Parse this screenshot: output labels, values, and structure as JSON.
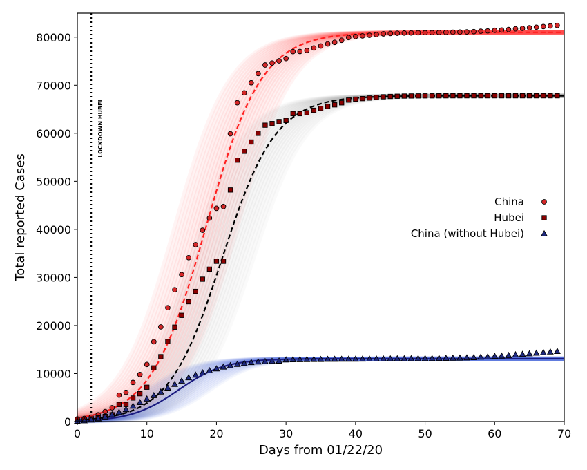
{
  "chart_data": {
    "type": "scatter",
    "xlabel": "Days from 01/22/20",
    "ylabel": "Total reported Cases",
    "xlim": [
      0,
      70
    ],
    "ylim": [
      0,
      85000
    ],
    "xticks": [
      0,
      10,
      20,
      30,
      40,
      50,
      60,
      70
    ],
    "yticks": [
      0,
      10000,
      20000,
      30000,
      40000,
      50000,
      60000,
      70000,
      80000
    ],
    "grid": false,
    "legend_position": "right",
    "annotation": {
      "text": "LOCKDOWN HUBEI",
      "x": 2
    },
    "series": [
      {
        "name": "China",
        "marker": "circle",
        "color": "#d62728",
        "band_color": "#ff2a2a",
        "fit_color": "#ff2020",
        "fit": {
          "L": 81000,
          "k": 0.25,
          "x0": 18.5
        },
        "x": [
          0,
          1,
          2,
          3,
          4,
          5,
          6,
          7,
          8,
          9,
          10,
          11,
          12,
          13,
          14,
          15,
          16,
          17,
          18,
          19,
          20,
          21,
          22,
          23,
          24,
          25,
          26,
          27,
          28,
          29,
          30,
          31,
          32,
          33,
          34,
          35,
          36,
          37,
          38,
          39,
          40,
          41,
          42,
          43,
          44,
          45,
          46,
          47,
          48,
          49,
          50,
          51,
          52,
          53,
          54,
          55,
          56,
          57,
          58,
          59,
          60,
          61,
          62,
          63,
          64,
          65,
          66,
          67,
          68,
          69
        ],
        "y": [
          548,
          643,
          920,
          1406,
          2075,
          2877,
          5509,
          6087,
          8141,
          9802,
          11891,
          16630,
          19716,
          23707,
          27440,
          30587,
          34110,
          36814,
          39829,
          42354,
          44386,
          44759,
          59895,
          66358,
          68413,
          70513,
          72434,
          74211,
          74619,
          75077,
          75550,
          77001,
          77022,
          77241,
          77754,
          78166,
          78600,
          78928,
          79356,
          79932,
          80136,
          80261,
          80386,
          80537,
          80690,
          80770,
          80823,
          80860,
          80887,
          80921,
          80932,
          80945,
          80977,
          81003,
          81033,
          81058,
          81102,
          81156,
          81250,
          81305,
          81435,
          81498,
          81600,
          81747,
          81846,
          81960,
          82078,
          82213,
          82341,
          82447
        ]
      },
      {
        "name": "Hubei",
        "marker": "square",
        "color": "#8b0000",
        "band_color": "#9a9a9a",
        "fit_color": "#000000",
        "fit": {
          "L": 67800,
          "k": 0.26,
          "x0": 20.8
        },
        "x": [
          0,
          1,
          2,
          3,
          4,
          5,
          6,
          7,
          8,
          9,
          10,
          11,
          12,
          13,
          14,
          15,
          16,
          17,
          18,
          19,
          20,
          21,
          22,
          23,
          24,
          25,
          26,
          27,
          28,
          29,
          30,
          31,
          32,
          33,
          34,
          35,
          36,
          37,
          38,
          39,
          40,
          41,
          42,
          43,
          44,
          45,
          46,
          47,
          48,
          49,
          50,
          51,
          52,
          53,
          54,
          55,
          56,
          57,
          58,
          59,
          60,
          61,
          62,
          63,
          64,
          65,
          66,
          67,
          68,
          69
        ],
        "y": [
          444,
          444,
          549,
          761,
          1058,
          1423,
          3554,
          3554,
          4903,
          5806,
          7153,
          11177,
          13522,
          16678,
          19665,
          22112,
          24953,
          27100,
          29631,
          31728,
          33366,
          33366,
          48206,
          54406,
          56249,
          58182,
          59989,
          61682,
          62031,
          62442,
          62662,
          64084,
          64084,
          64287,
          64786,
          65187,
          65596,
          65914,
          66337,
          66907,
          67103,
          67217,
          67332,
          67466,
          67592,
          67666,
          67707,
          67743,
          67760,
          67773,
          67781,
          67786,
          67790,
          67794,
          67798,
          67799,
          67800,
          67800,
          67800,
          67801,
          67801,
          67801,
          67801,
          67801,
          67801,
          67801,
          67801,
          67801,
          67802,
          67802
        ]
      },
      {
        "name": "China (without Hubei)",
        "marker": "triangle",
        "color": "#1f2a80",
        "band_color": "#3b5bdb",
        "fit_color": "#1a1a80",
        "fit": {
          "L": 13100,
          "k": 0.3,
          "x0": 14.5
        },
        "x": [
          0,
          1,
          2,
          3,
          4,
          5,
          6,
          7,
          8,
          9,
          10,
          11,
          12,
          13,
          14,
          15,
          16,
          17,
          18,
          19,
          20,
          21,
          22,
          23,
          24,
          25,
          26,
          27,
          28,
          29,
          30,
          31,
          32,
          33,
          34,
          35,
          36,
          37,
          38,
          39,
          40,
          41,
          42,
          43,
          44,
          45,
          46,
          47,
          48,
          49,
          50,
          51,
          52,
          53,
          54,
          55,
          56,
          57,
          58,
          59,
          60,
          61,
          62,
          63,
          64,
          65,
          66,
          67,
          68,
          69
        ],
        "y": [
          104,
          199,
          371,
          645,
          1017,
          1454,
          1955,
          2533,
          3238,
          3996,
          4738,
          5453,
          6194,
          7029,
          7775,
          8475,
          9157,
          9714,
          10198,
          10626,
          11020,
          11393,
          11689,
          11952,
          12164,
          12331,
          12445,
          12529,
          12588,
          12635,
          12888,
          12917,
          12938,
          12954,
          12968,
          12979,
          13004,
          13014,
          13019,
          13025,
          13033,
          13044,
          13054,
          13071,
          13098,
          13104,
          13116,
          13117,
          13127,
          13148,
          13151,
          13159,
          13187,
          13209,
          13235,
          13259,
          13303,
          13356,
          13450,
          13504,
          13634,
          13697,
          13799,
          13946,
          14045,
          14159,
          14276,
          14411,
          14539,
          14645
        ]
      }
    ]
  }
}
